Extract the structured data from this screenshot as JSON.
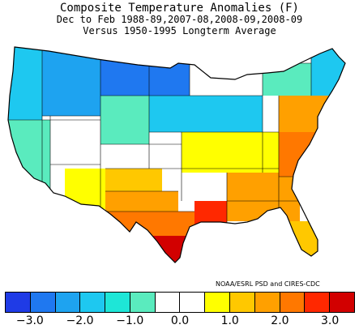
{
  "title": {
    "line1": "Composite Temperature Anomalies (F)",
    "line2": "Dec to Feb  1988-89,2007-08,2008-09,2008-09",
    "line3": "Versus 1950-1995 Longterm Average"
  },
  "credit": "NOAA/ESRL PSD and CIRES-CDC",
  "legend": {
    "colors": [
      "#1f3be6",
      "#1f78f0",
      "#1ea3f0",
      "#1ec8f0",
      "#1ee6d7",
      "#5aebbe",
      "#ffffff",
      "#ffffff",
      "#ffff00",
      "#ffc800",
      "#ffa000",
      "#ff7800",
      "#ff2800",
      "#d20000"
    ],
    "ticks": [
      "−3.0",
      "−2.0",
      "−1.0",
      "0.0",
      "1.0",
      "2.0",
      "3.0"
    ]
  },
  "map": {
    "regions": [
      {
        "name": "pacific-northwest",
        "color": "#1ec8f0"
      },
      {
        "name": "california-nevada",
        "color": "#5aebbe"
      },
      {
        "name": "idaho-montana",
        "color": "#1ea3f0"
      },
      {
        "name": "wyoming-colorado",
        "color": "#ffffff"
      },
      {
        "name": "southwest",
        "color": "#ffffff"
      },
      {
        "name": "new-mexico",
        "color": "#ffff00"
      },
      {
        "name": "north-dakota-minnesota",
        "color": "#1f78f0"
      },
      {
        "name": "south-dakota-nebraska",
        "color": "#5aebbe"
      },
      {
        "name": "kansas-missouri",
        "color": "#ffffff"
      },
      {
        "name": "oklahoma",
        "color": "#ffc800"
      },
      {
        "name": "texas-north",
        "color": "#ffa000"
      },
      {
        "name": "texas-south",
        "color": "#ff7800"
      },
      {
        "name": "texas-gulf",
        "color": "#d20000"
      },
      {
        "name": "great-lakes",
        "color": "#1ec8f0"
      },
      {
        "name": "ohio-valley",
        "color": "#ffff00"
      },
      {
        "name": "louisiana",
        "color": "#ff2800"
      },
      {
        "name": "southeast",
        "color": "#ffa000"
      },
      {
        "name": "florida",
        "color": "#ffc800"
      },
      {
        "name": "mid-atlantic",
        "color": "#ff7800"
      },
      {
        "name": "northeast",
        "color": "#ffa000"
      },
      {
        "name": "new-england",
        "color": "#5aebbe"
      },
      {
        "name": "maine",
        "color": "#1ec8f0"
      }
    ]
  }
}
